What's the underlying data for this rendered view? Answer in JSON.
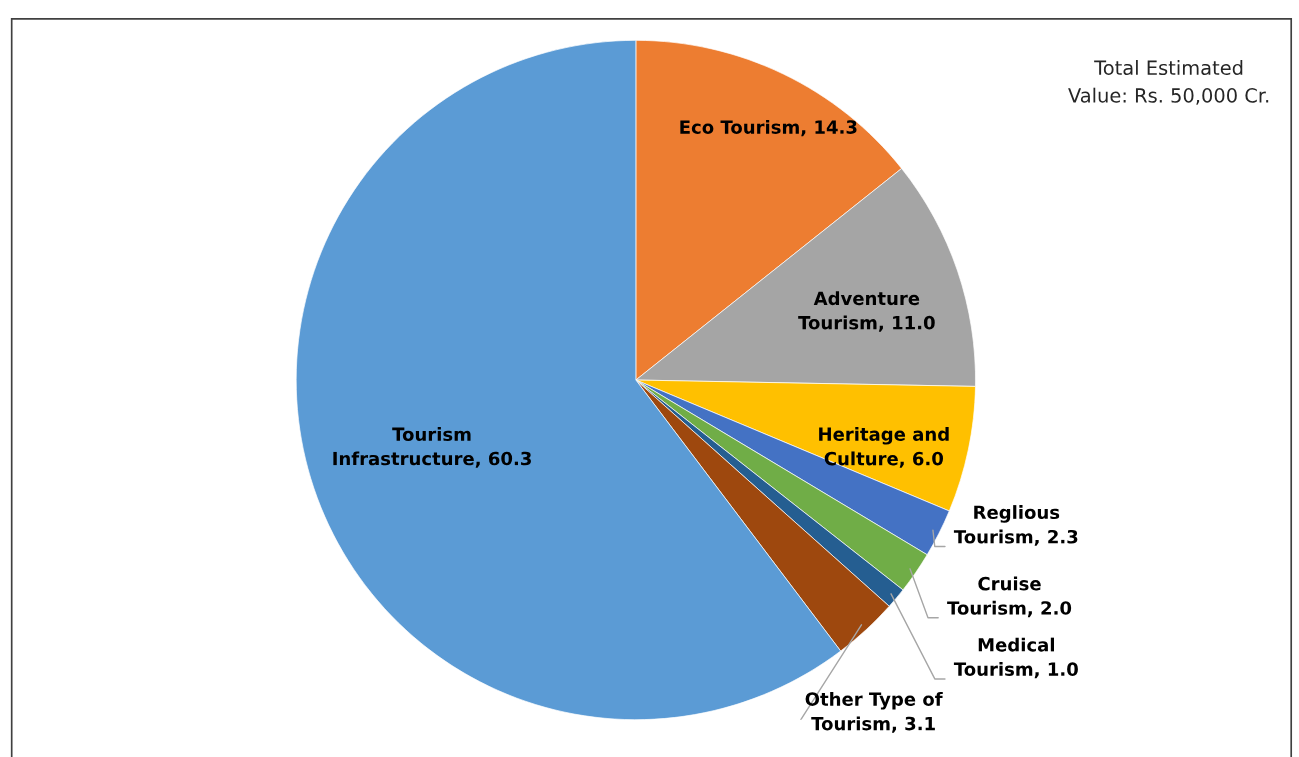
{
  "chart_data": {
    "type": "pie",
    "categories": [
      "Eco Tourism",
      "Adventure\nTourism",
      "Heritage and\nCulture",
      "Reglious\nTourism",
      "Cruise\nTourism",
      "Medical\nTourism",
      "Other Type of\nTourism",
      "Tourism\nInfrastructure"
    ],
    "values": [
      14.3,
      11.0,
      6.0,
      2.3,
      2.0,
      1.0,
      3.1,
      60.3
    ],
    "value_labels": [
      "14.3",
      "11.0",
      "6.0",
      "2.3",
      "2.0",
      "1.0",
      "3.1",
      "60.3"
    ],
    "colors": [
      "#ed7d31",
      "#a5a5a5",
      "#ffc000",
      "#4472c4",
      "#70ad47",
      "#255e91",
      "#9e480e",
      "#5b9bd5"
    ],
    "annotations": [
      "Total Estimated\nValue: Rs. 50,000 Cr."
    ]
  }
}
